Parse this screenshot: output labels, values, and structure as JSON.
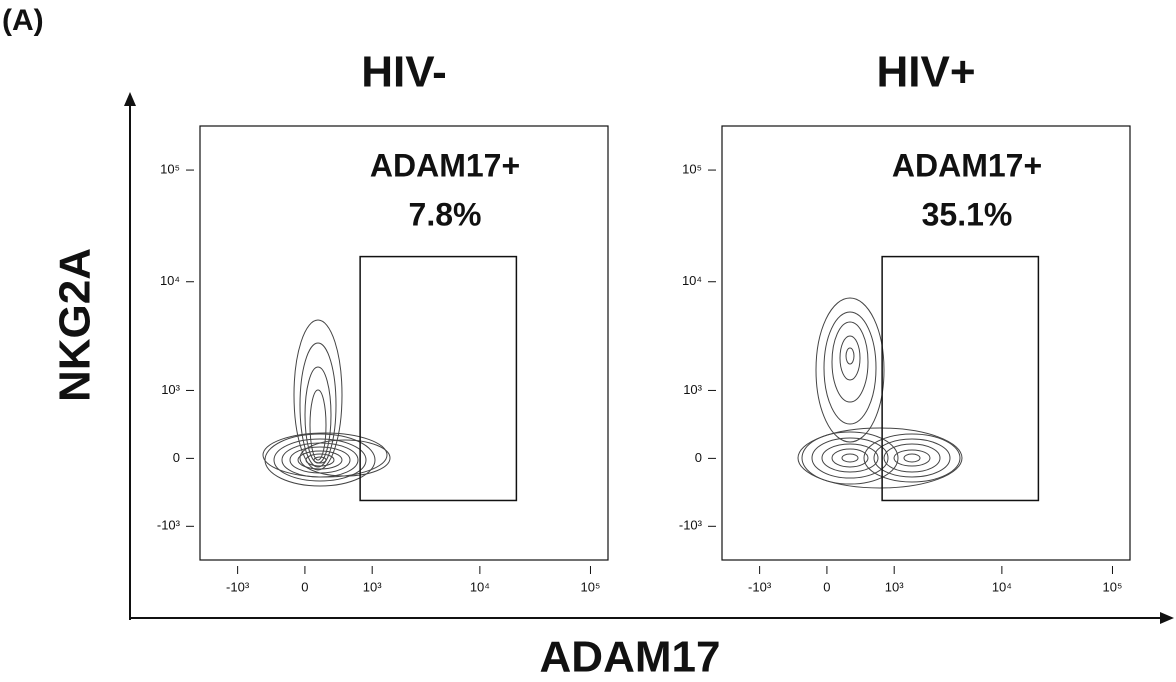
{
  "figure": {
    "panel_label": "(A)",
    "x_label": "ADAM17",
    "y_label": "NKG2A"
  },
  "chart_data": [
    {
      "type": "contour",
      "title": "HIV-",
      "xlim": [
        -2300,
        144000
      ],
      "ylim": [
        -2100,
        248000
      ],
      "xticks": [
        {
          "value": -1000,
          "label": "-10³"
        },
        0,
        {
          "value": 1000,
          "label": "10³"
        },
        {
          "value": 10000,
          "label": "10⁴"
        },
        {
          "value": 100000,
          "label": "10⁵"
        }
      ],
      "yticks": [
        {
          "value": -1000,
          "label": "-10³"
        },
        0,
        {
          "value": 1000,
          "label": "10³"
        },
        {
          "value": 10000,
          "label": "10⁴"
        },
        {
          "value": 100000,
          "label": "10⁵"
        }
      ],
      "gate": {
        "name": "ADAM17+",
        "percent": 7.8,
        "percent_label": "7.8%",
        "xlim": [
          745,
          21400
        ],
        "ylim": [
          -515,
          16800
        ]
      }
    },
    {
      "type": "contour",
      "title": "HIV+",
      "xlim": [
        -2300,
        144000
      ],
      "ylim": [
        -2100,
        248000
      ],
      "xticks": [
        {
          "value": -1000,
          "label": "-10³"
        },
        0,
        {
          "value": 1000,
          "label": "10³"
        },
        {
          "value": 10000,
          "label": "10⁴"
        },
        {
          "value": 100000,
          "label": "10⁵"
        }
      ],
      "yticks": [
        {
          "value": -1000,
          "label": "-10³"
        },
        0,
        {
          "value": 1000,
          "label": "10³"
        },
        {
          "value": 10000,
          "label": "10⁴"
        },
        {
          "value": 100000,
          "label": "10⁵"
        }
      ],
      "gate": {
        "name": "ADAM17+",
        "percent": 35.1,
        "percent_label": "35.1%",
        "xlim": [
          745,
          21400
        ],
        "ylim": [
          -515,
          16800
        ]
      }
    }
  ]
}
